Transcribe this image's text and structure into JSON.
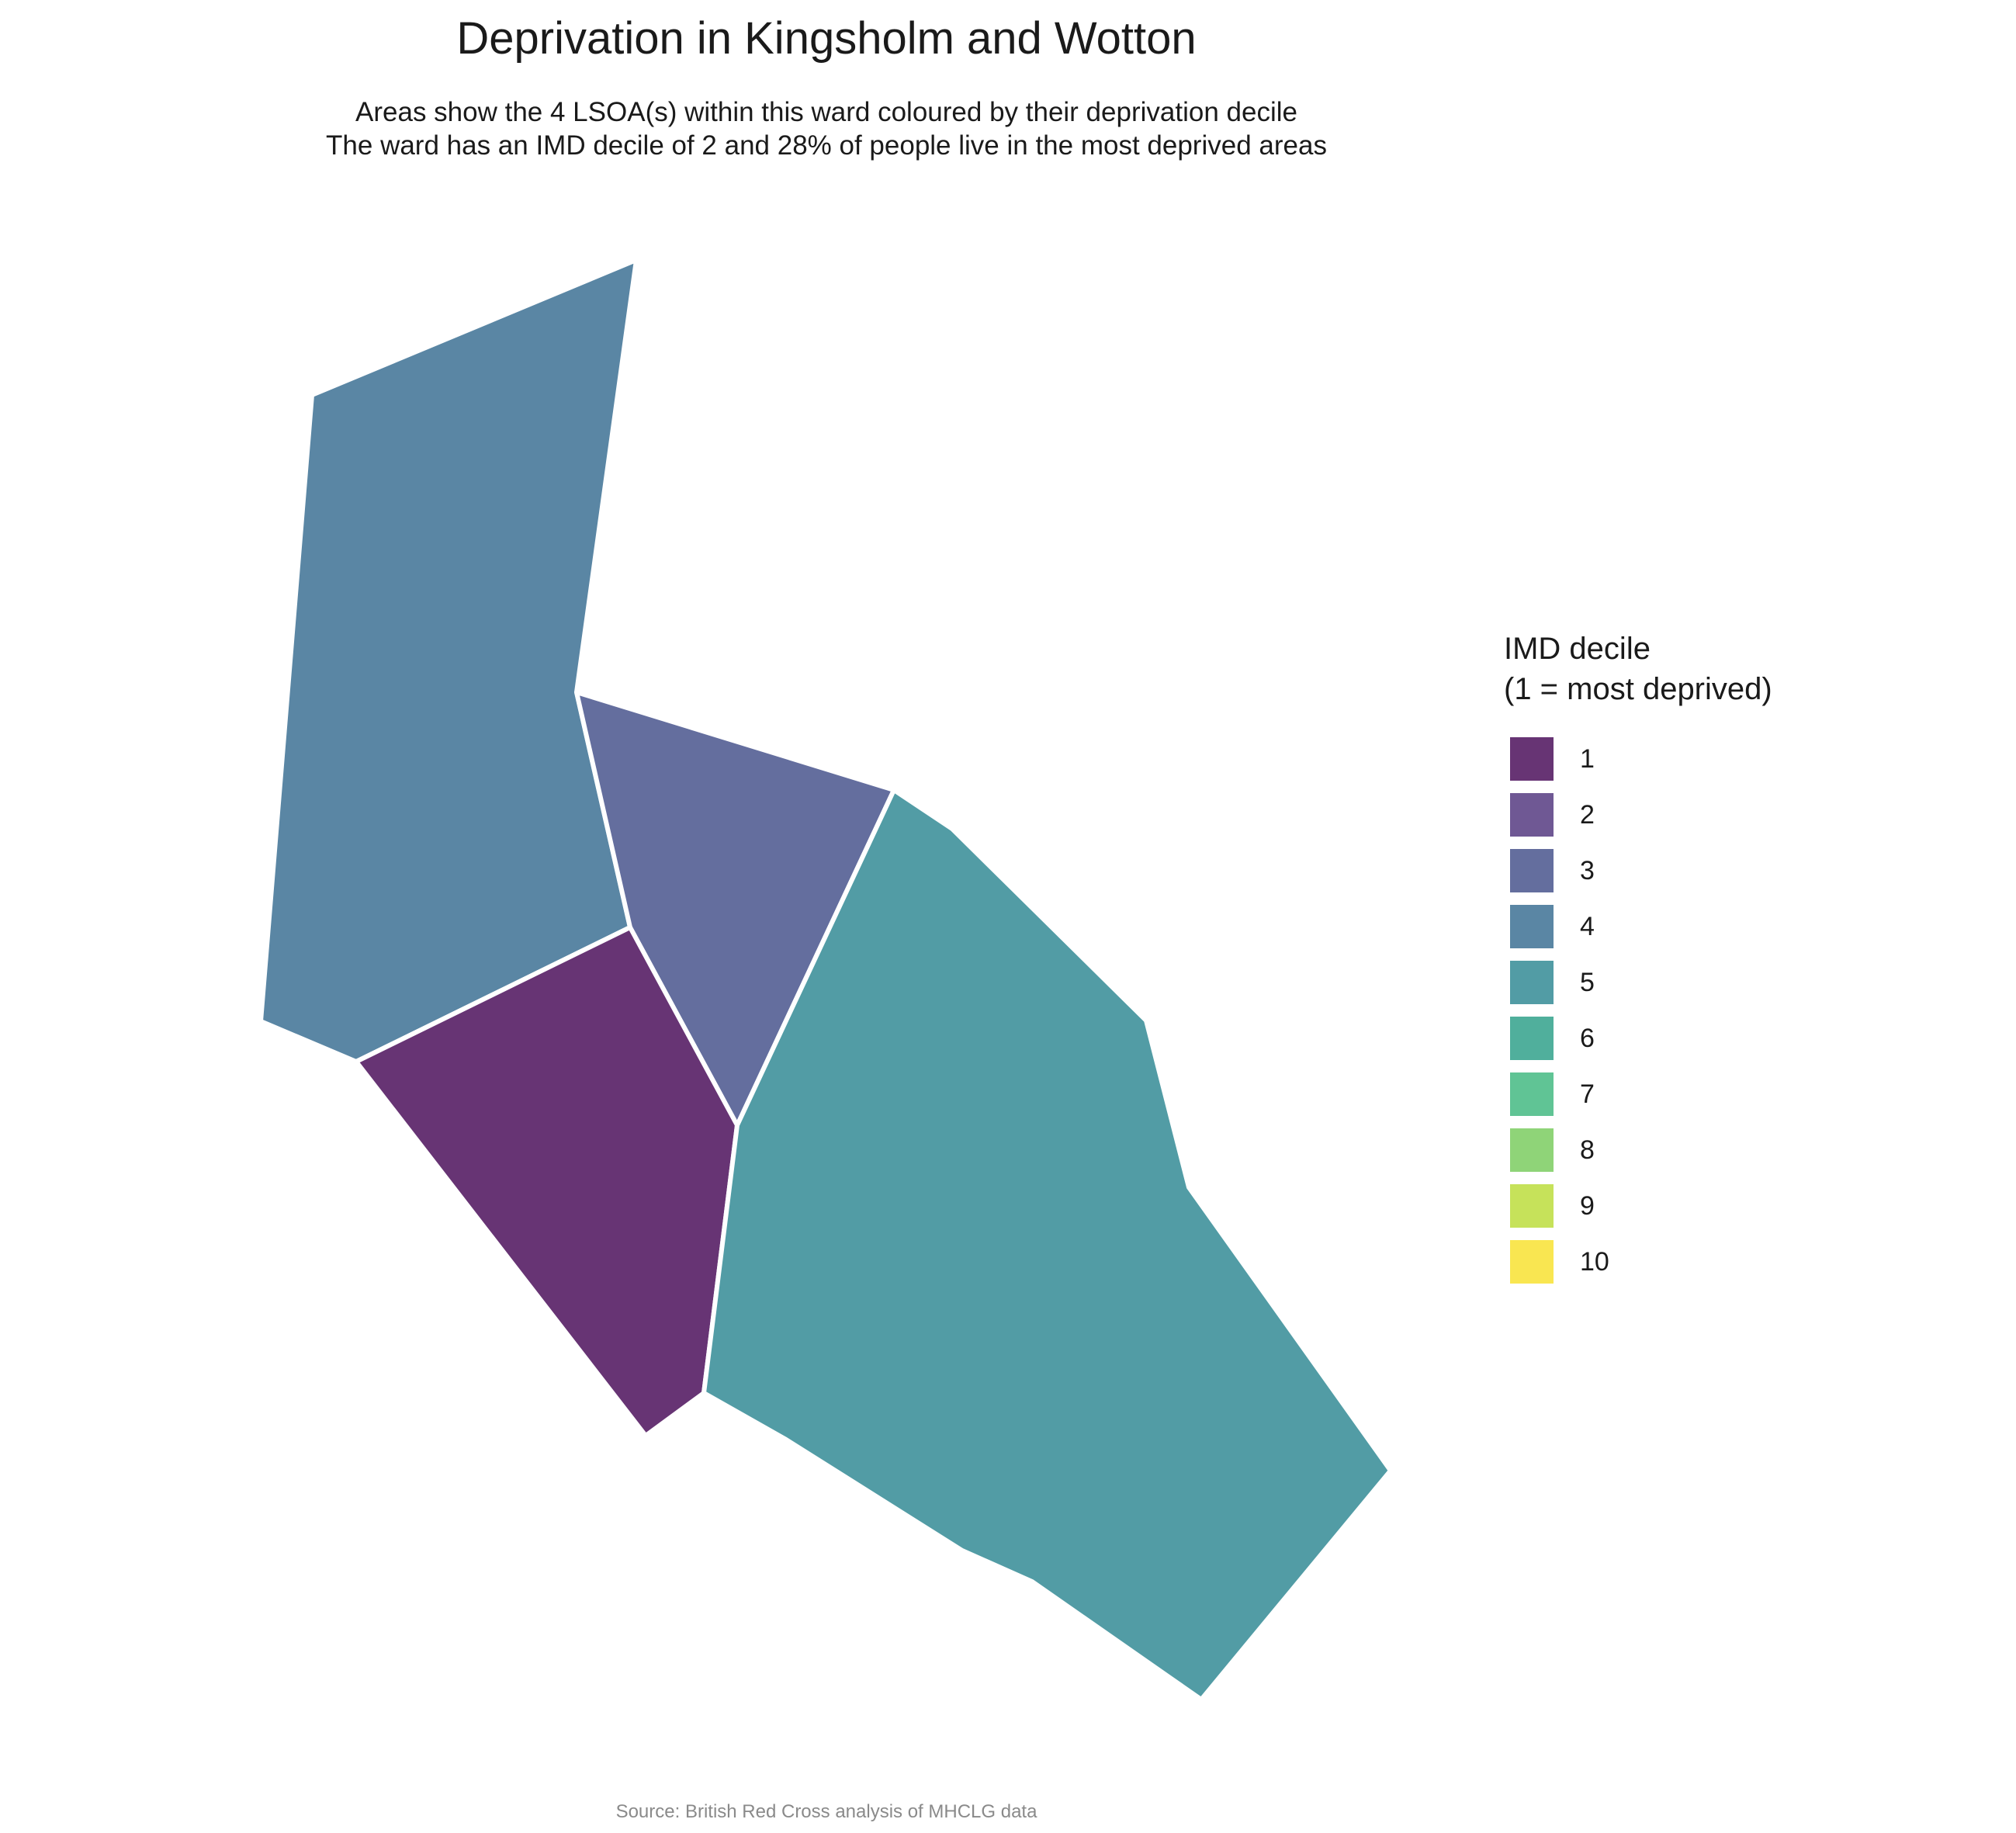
{
  "title": "Deprivation in Kingsholm and Wotton",
  "subtitle": {
    "line1": "Areas show the 4 LSOA(s) within this ward coloured by their deprivation decile",
    "line2": "The ward has an IMD decile of 2 and 28% of people live in the most deprived areas"
  },
  "caption": "Source: British Red Cross analysis of MHCLG data",
  "legend": {
    "title_line1": "IMD decile",
    "title_line2": "(1 = most deprived)",
    "items": [
      {
        "label": "1",
        "color": "#673474"
      },
      {
        "label": "2",
        "color": "#6F5894"
      },
      {
        "label": "3",
        "color": "#646E9E"
      },
      {
        "label": "4",
        "color": "#5A86A4"
      },
      {
        "label": "5",
        "color": "#529CA5"
      },
      {
        "label": "6",
        "color": "#50AF9C"
      },
      {
        "label": "7",
        "color": "#60C495"
      },
      {
        "label": "8",
        "color": "#8FD478"
      },
      {
        "label": "9",
        "color": "#C6E25A"
      },
      {
        "label": "10",
        "color": "#F9E651"
      }
    ]
  },
  "areas": [
    {
      "name": "lsoa-north-west",
      "decile": 4
    },
    {
      "name": "lsoa-central",
      "decile": 3
    },
    {
      "name": "lsoa-south-west",
      "decile": 1
    },
    {
      "name": "lsoa-south-east",
      "decile": 5
    }
  ]
}
